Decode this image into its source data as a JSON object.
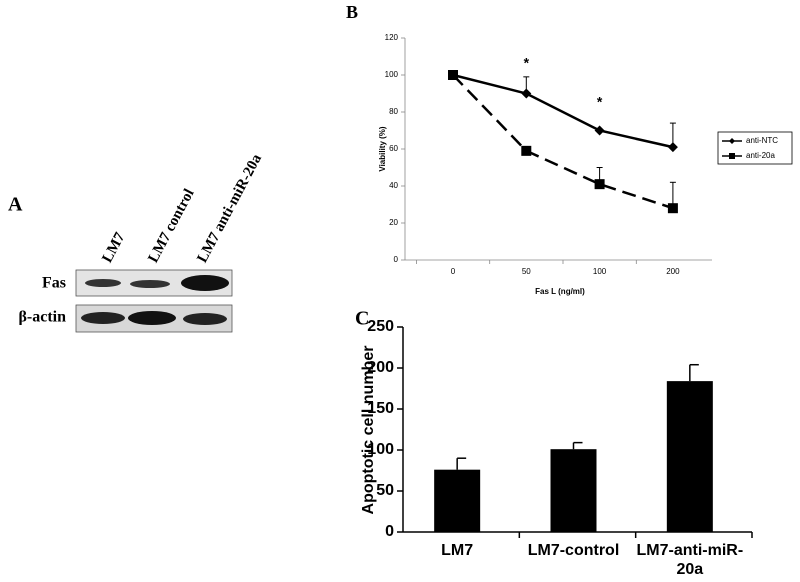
{
  "blot": {
    "panel_label": "A",
    "lanes": [
      "LM7",
      "LM7 control",
      "LM7 anti-miR-20a"
    ],
    "rows": [
      "Fas",
      "β-actin"
    ]
  },
  "chart_data": [
    {
      "type": "line",
      "panel_label": "B",
      "xlabel": "Fas L (ng/ml)",
      "ylabel": "Viability (%)",
      "categories": [
        "0",
        "50",
        "100",
        "200"
      ],
      "ylim": [
        0,
        120
      ],
      "yticks": [
        0,
        20,
        40,
        60,
        80,
        100,
        120
      ],
      "legend": "right",
      "series": [
        {
          "name": "anti-NTC",
          "color": "#000000",
          "line_style": "solid",
          "marker": "diamond",
          "values": [
            100,
            90,
            70,
            61
          ],
          "errors": [
            null,
            9,
            null,
            13
          ]
        },
        {
          "name": "anti-20a",
          "color": "#000000",
          "line_style": "dashed",
          "marker": "square",
          "values": [
            100,
            59,
            41,
            28
          ],
          "errors": [
            null,
            null,
            9,
            14
          ]
        }
      ],
      "annotations": [
        {
          "text": "*",
          "category": "50",
          "y": 106
        },
        {
          "text": "*",
          "category": "100",
          "y": 85
        }
      ]
    },
    {
      "type": "bar",
      "panel_label": "C",
      "ylabel": "Apoptotic cell number",
      "color": "#000000",
      "categories": [
        "LM7",
        "LM7-control",
        "LM7-anti-miR-20a"
      ],
      "values": [
        76,
        101,
        184
      ],
      "errors": [
        14,
        8,
        20
      ],
      "ylim": [
        0,
        250
      ],
      "yticks": [
        0,
        50,
        100,
        150,
        200,
        250
      ]
    }
  ]
}
